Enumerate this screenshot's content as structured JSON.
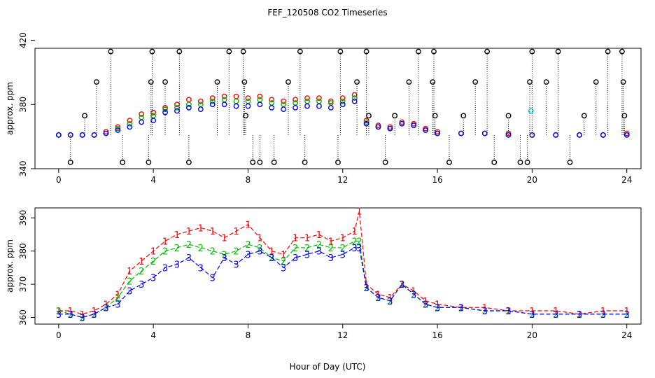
{
  "figure": {
    "title": "FEF_120508  CO2 Timeseries",
    "xlabel": "Hour of Day (UTC)"
  },
  "colors": {
    "series1": "#ff0000",
    "series2": "#00bb00",
    "series3": "#0000ff",
    "flag": "#000000",
    "cyan": "#00c8d8"
  },
  "chart_data": [
    {
      "type": "scatter",
      "title": "",
      "xlabel": "",
      "ylabel": "approx. ppm",
      "x_ticks": [
        "0",
        "4",
        "8",
        "12",
        "16",
        "20",
        "24"
      ],
      "y_ticks": [
        "340",
        "380",
        "420"
      ],
      "xlim": [
        -1,
        24.6
      ],
      "ylim": [
        340,
        415
      ],
      "grid": false,
      "legend": "none",
      "series": [
        {
          "marker": "circle",
          "color": "red",
          "x": [
            0,
            0.5,
            1,
            1.5,
            2,
            2.5,
            3,
            3.5,
            4,
            4.5,
            5,
            5.5,
            6,
            6.5,
            7,
            7.5,
            8,
            8.5,
            9,
            9.5,
            10,
            10.5,
            11,
            11.5,
            12,
            12.5,
            13,
            13.5,
            14,
            14.5,
            15,
            15.5,
            16,
            17,
            18,
            19,
            20,
            21,
            22,
            23,
            24
          ],
          "y": [
            361,
            361,
            361,
            361,
            363,
            366,
            370,
            374,
            375,
            378,
            380,
            383,
            382,
            384,
            385,
            385,
            384,
            385,
            383,
            382,
            383,
            384,
            384,
            382,
            384,
            386,
            370,
            367,
            366,
            369,
            368,
            365,
            363,
            362,
            362,
            362,
            361,
            361,
            361,
            361,
            362
          ]
        },
        {
          "marker": "circle",
          "color": "green",
          "x": [
            0,
            0.5,
            1,
            1.5,
            2,
            2.5,
            3,
            3.5,
            4,
            4.5,
            5,
            5.5,
            6,
            6.5,
            7,
            7.5,
            8,
            8.5,
            9,
            9.5,
            10,
            10.5,
            11,
            11.5,
            12,
            12.5,
            13,
            13.5,
            14,
            14.5,
            15,
            15.5,
            16,
            17,
            18,
            19,
            20,
            21,
            22,
            23,
            24
          ],
          "y": [
            361,
            361,
            361,
            361,
            362,
            365,
            368,
            372,
            373,
            377,
            378,
            380,
            380,
            382,
            383,
            382,
            382,
            383,
            381,
            380,
            381,
            382,
            382,
            381,
            382,
            384,
            369,
            366,
            365,
            368,
            367,
            364,
            362,
            362,
            362,
            361,
            361,
            361,
            361,
            361,
            361
          ]
        },
        {
          "marker": "circle",
          "color": "blue",
          "x": [
            0,
            0.5,
            1,
            1.5,
            2,
            2.5,
            3,
            3.5,
            4,
            4.5,
            5,
            5.5,
            6,
            6.5,
            7,
            7.5,
            8,
            8.5,
            9,
            9.5,
            10,
            10.5,
            11,
            11.5,
            12,
            12.5,
            13,
            13.5,
            14,
            14.5,
            15,
            15.5,
            16,
            17,
            18,
            19,
            20,
            21,
            22,
            23,
            24
          ],
          "y": [
            361,
            361,
            361,
            361,
            362,
            364,
            366,
            369,
            370,
            375,
            376,
            378,
            377,
            380,
            380,
            379,
            379,
            380,
            378,
            377,
            378,
            379,
            379,
            378,
            380,
            382,
            368,
            366,
            365,
            368,
            367,
            364,
            362,
            362,
            362,
            361,
            361,
            361,
            361,
            361,
            361
          ]
        },
        {
          "marker": "circle",
          "color": "black",
          "name": "",
          "x": [
            0.5,
            1.1,
            1.6,
            2.2,
            2.7,
            3.8,
            3.9,
            3.95,
            4.5,
            5.1,
            5.5,
            6.7,
            7.2,
            7.8,
            7.85,
            7.9,
            8.2,
            8.5,
            9.1,
            9.7,
            10.2,
            10.4,
            11.8,
            11.9,
            12.6,
            13.0,
            13.1,
            13.8,
            14.2,
            14.8,
            15.2,
            15.8,
            15.85,
            15.9,
            16.5,
            17.1,
            17.6,
            18.1,
            18.4,
            19.0,
            19.5,
            19.8,
            19.9,
            20.0,
            20.6,
            21.1,
            21.6,
            22.2,
            22.7,
            23.2,
            23.8,
            23.85,
            23.9
          ],
          "y": [
            344,
            373,
            394,
            413,
            344,
            344,
            394,
            413,
            394,
            413,
            344,
            394,
            413,
            413,
            394,
            373,
            344,
            344,
            344,
            394,
            413,
            344,
            344,
            413,
            394,
            413,
            373,
            344,
            373,
            394,
            413,
            394,
            413,
            373,
            344,
            373,
            394,
            413,
            344,
            373,
            344,
            344,
            394,
            413,
            394,
            413,
            344,
            373,
            394,
            413,
            413,
            394,
            373
          ]
        },
        {
          "marker": "circle",
          "color": "cyan",
          "x": [
            19.95
          ],
          "y": [
            376
          ]
        }
      ]
    },
    {
      "type": "line",
      "title": "",
      "xlabel": "",
      "ylabel": "approx. ppm",
      "x_ticks": [
        "0",
        "4",
        "8",
        "12",
        "16",
        "20",
        "24"
      ],
      "y_ticks": [
        "360",
        "370",
        "380",
        "390"
      ],
      "xlim": [
        -1,
        24.6
      ],
      "ylim": [
        358,
        393
      ],
      "grid": false,
      "legend": "none",
      "series": [
        {
          "marker": "1",
          "color": "red",
          "linestyle": "dashed",
          "x": [
            0,
            0.5,
            1,
            1.5,
            2,
            2.5,
            3,
            3.5,
            4,
            4.5,
            5,
            5.5,
            6,
            6.5,
            7,
            7.5,
            8,
            8.5,
            9,
            9.5,
            10,
            10.5,
            11,
            11.5,
            12,
            12.5,
            12.7,
            13,
            13.5,
            14,
            14.5,
            15,
            15.5,
            16,
            17,
            18,
            19,
            20,
            21,
            22,
            23,
            24
          ],
          "y": [
            362,
            362,
            361,
            362,
            364,
            367,
            374,
            377,
            380,
            383,
            385,
            386,
            387,
            386,
            384,
            386,
            388,
            384,
            380,
            379,
            384,
            384,
            385,
            383,
            384,
            386,
            392,
            370,
            367,
            366,
            370,
            368,
            365,
            364,
            363,
            363,
            362,
            362,
            362,
            361,
            362,
            362
          ]
        },
        {
          "marker": "2",
          "color": "green",
          "linestyle": "dashed",
          "x": [
            0,
            0.5,
            1,
            1.5,
            2,
            2.5,
            3,
            3.5,
            4,
            4.5,
            5,
            5.5,
            6,
            6.5,
            7,
            7.5,
            8,
            8.5,
            9,
            9.5,
            10,
            10.5,
            11,
            11.5,
            12,
            12.5,
            12.7,
            13,
            13.5,
            14,
            14.5,
            15,
            15.5,
            16,
            17,
            18,
            19,
            20,
            21,
            22,
            23,
            24
          ],
          "y": [
            362,
            361,
            360,
            361,
            363,
            366,
            371,
            374,
            377,
            380,
            381,
            382,
            381,
            380,
            379,
            380,
            382,
            381,
            378,
            377,
            381,
            381,
            382,
            381,
            381,
            383,
            383,
            369,
            366,
            365,
            370,
            367,
            364,
            363,
            363,
            362,
            362,
            361,
            361,
            361,
            361,
            361
          ]
        },
        {
          "marker": "3",
          "color": "blue",
          "linestyle": "dashed",
          "x": [
            0,
            0.5,
            1,
            1.5,
            2,
            2.5,
            3,
            3.5,
            4,
            4.5,
            5,
            5.5,
            6,
            6.5,
            7,
            7.5,
            8,
            8.5,
            9,
            9.5,
            10,
            10.5,
            11,
            11.5,
            12,
            12.5,
            12.7,
            13,
            13.5,
            14,
            14.5,
            15,
            15.5,
            16,
            17,
            18,
            19,
            20,
            21,
            22,
            23,
            24
          ],
          "y": [
            361,
            361,
            360,
            361,
            363,
            364,
            368,
            370,
            372,
            375,
            376,
            378,
            375,
            372,
            378,
            376,
            379,
            380,
            378,
            375,
            378,
            379,
            380,
            378,
            379,
            381,
            381,
            369,
            366,
            365,
            370,
            367,
            364,
            363,
            363,
            362,
            362,
            361,
            361,
            361,
            361,
            361
          ]
        }
      ]
    }
  ]
}
